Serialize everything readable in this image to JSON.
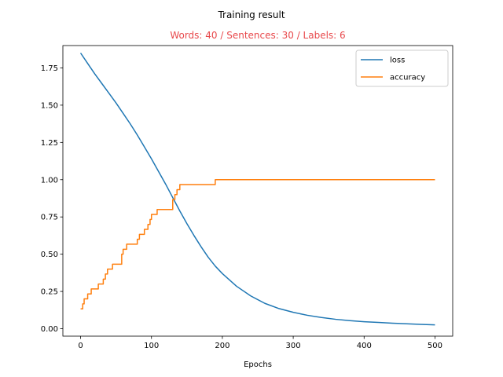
{
  "chart_data": {
    "type": "line",
    "title": "Training result",
    "subtitle": "Words: 40 / Sentences: 30 / Labels: 6",
    "subtitle_color": "#e8484b",
    "xlabel": "Epochs",
    "ylabel": "",
    "xlim": [
      -25,
      525
    ],
    "ylim": [
      -0.05,
      1.9
    ],
    "xticks": [
      0,
      100,
      200,
      300,
      400,
      500
    ],
    "xtick_labels": [
      "0",
      "100",
      "200",
      "300",
      "400",
      "500"
    ],
    "yticks": [
      0.0,
      0.25,
      0.5,
      0.75,
      1.0,
      1.25,
      1.5,
      1.75
    ],
    "ytick_labels": [
      "0.00",
      "0.25",
      "0.50",
      "0.75",
      "1.00",
      "1.25",
      "1.50",
      "1.75"
    ],
    "grid": false,
    "legend_position": "upper right",
    "series": [
      {
        "name": "loss",
        "color": "#1f77b4",
        "step": false,
        "x": [
          0,
          10,
          20,
          30,
          40,
          50,
          60,
          70,
          80,
          90,
          100,
          110,
          120,
          130,
          140,
          150,
          160,
          170,
          180,
          190,
          200,
          220,
          240,
          260,
          280,
          300,
          320,
          340,
          360,
          380,
          400,
          420,
          440,
          460,
          480,
          500
        ],
        "y": [
          1.85,
          1.78,
          1.71,
          1.645,
          1.58,
          1.515,
          1.445,
          1.375,
          1.3,
          1.22,
          1.14,
          1.055,
          0.97,
          0.88,
          0.79,
          0.705,
          0.625,
          0.55,
          0.48,
          0.42,
          0.37,
          0.285,
          0.22,
          0.17,
          0.135,
          0.11,
          0.09,
          0.075,
          0.063,
          0.054,
          0.047,
          0.042,
          0.037,
          0.033,
          0.029,
          0.026
        ]
      },
      {
        "name": "accuracy",
        "color": "#ff7f0e",
        "step": true,
        "x": [
          0,
          3,
          5,
          8,
          10,
          15,
          25,
          30,
          32,
          35,
          38,
          40,
          45,
          58,
          60,
          62,
          65,
          80,
          83,
          87,
          90,
          95,
          98,
          100,
          104,
          108,
          110,
          130,
          133,
          136,
          140,
          143,
          190,
          193,
          500
        ],
        "y": [
          0.133,
          0.167,
          0.2,
          0.2,
          0.233,
          0.267,
          0.3,
          0.3,
          0.333,
          0.367,
          0.4,
          0.4,
          0.433,
          0.5,
          0.533,
          0.533,
          0.567,
          0.6,
          0.633,
          0.633,
          0.667,
          0.7,
          0.733,
          0.767,
          0.767,
          0.8,
          0.8,
          0.867,
          0.9,
          0.933,
          0.967,
          0.967,
          1.0,
          1.0,
          1.0
        ]
      }
    ]
  }
}
